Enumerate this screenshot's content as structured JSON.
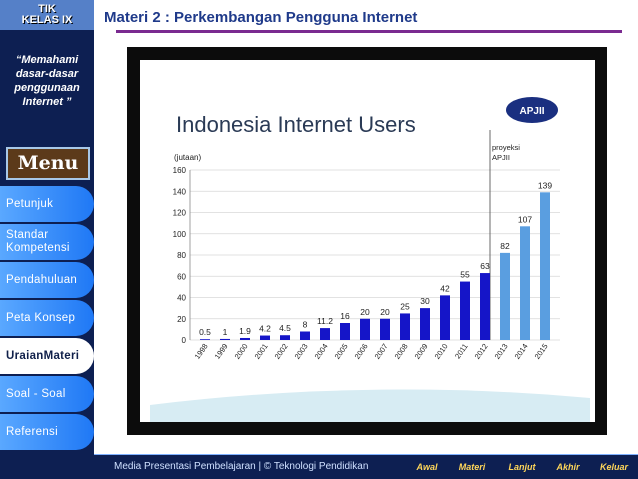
{
  "sidebar": {
    "badge_line1": "TIK",
    "badge_line2": "KELAS IX",
    "quote": "“Memahami dasar-dasar penggunaan Internet ”",
    "menu_title": "Menu",
    "items": [
      {
        "label": "Petunjuk"
      },
      {
        "label": "Standar Kompetensi"
      },
      {
        "label": "Pendahuluan"
      },
      {
        "label": "Peta Konsep"
      },
      {
        "label": "UraianMateri"
      },
      {
        "label": "Soal - Soal"
      },
      {
        "label": "Referensi"
      }
    ]
  },
  "header": {
    "title": "Materi 2 : Perkembangan Pengguna Internet"
  },
  "chart_data": {
    "type": "bar",
    "title": "Indonesia Internet Users",
    "ylabel": "(jutaan)",
    "logo_text": "APJII",
    "projection_label": "proyeksi APJII",
    "ylim": [
      0,
      160
    ],
    "yticks": [
      0,
      20,
      40,
      60,
      80,
      100,
      120,
      140,
      160
    ],
    "categories": [
      "1998",
      "1999",
      "2000",
      "2001",
      "2002",
      "2003",
      "2004",
      "2005",
      "2006",
      "2007",
      "2008",
      "2009",
      "2010",
      "2011",
      "2012",
      "2013",
      "2014",
      "2015"
    ],
    "values": [
      0.5,
      1,
      1.9,
      4.2,
      4.5,
      8,
      11.2,
      16,
      20,
      20,
      25,
      30,
      42,
      55,
      63,
      82,
      107,
      139
    ],
    "value_labels": [
      "0.5",
      "1",
      "1.9",
      "4.2",
      "4.5",
      "8",
      "11.2",
      "16",
      "20",
      "20",
      "25",
      "30",
      "42",
      "55",
      "63",
      "82",
      "107",
      "139"
    ],
    "projection_start_index": 15,
    "colors": {
      "actual": "#1515c8",
      "projection": "#5a9ee0"
    }
  },
  "footer": {
    "text": "Media Presentasi Pembelajaran | © Teknologi Pendidikan",
    "nav": [
      "Awal",
      "Materi",
      "Lanjut",
      "Akhir",
      "Keluar"
    ]
  }
}
